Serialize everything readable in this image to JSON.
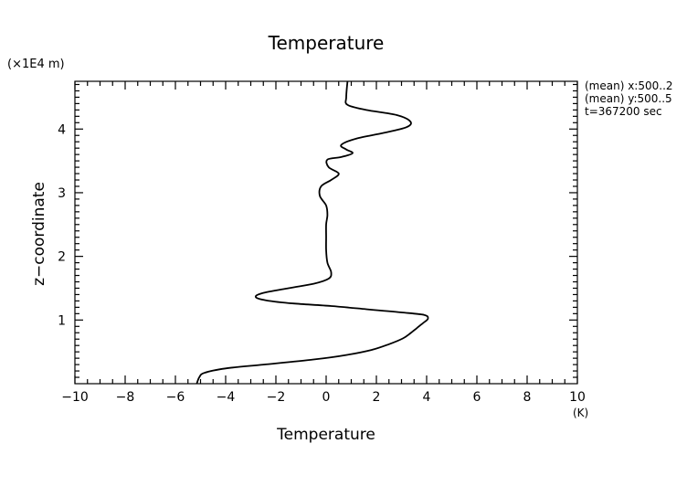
{
  "chart_data": {
    "type": "line",
    "title": "Temperature",
    "xlabel": "Temperature",
    "ylabel": "z−coordinate",
    "x_unit": "(K)",
    "y_unit": "(×1E4 m)",
    "xlim": [
      -10,
      10
    ],
    "ylim": [
      0,
      4.75
    ],
    "x_ticks": [
      -10,
      -8,
      -6,
      -4,
      -2,
      0,
      2,
      4,
      6,
      8,
      10
    ],
    "x_tick_labels": [
      "−10",
      "−8",
      "−6",
      "−4",
      "−2",
      "0",
      "2",
      "4",
      "6",
      "8",
      "10"
    ],
    "y_ticks": [
      1,
      2,
      3,
      4
    ],
    "y_tick_labels": [
      "1",
      "2",
      "3",
      "4"
    ],
    "grid": false,
    "info_lines": [
      "(mean) x:500..2",
      "(mean) y:500..5",
      "t=367200 sec"
    ],
    "series": [
      {
        "points": [
          [
            -5.15,
            0.0
          ],
          [
            -5.05,
            0.1
          ],
          [
            -4.85,
            0.17
          ],
          [
            -4.0,
            0.24
          ],
          [
            -2.5,
            0.3
          ],
          [
            -0.5,
            0.38
          ],
          [
            0.8,
            0.45
          ],
          [
            1.8,
            0.53
          ],
          [
            2.5,
            0.62
          ],
          [
            3.05,
            0.71
          ],
          [
            3.35,
            0.79
          ],
          [
            3.6,
            0.87
          ],
          [
            3.85,
            0.95
          ],
          [
            4.05,
            1.02
          ],
          [
            3.9,
            1.08
          ],
          [
            3.0,
            1.12
          ],
          [
            1.6,
            1.17
          ],
          [
            0.2,
            1.22
          ],
          [
            -1.3,
            1.26
          ],
          [
            -2.4,
            1.31
          ],
          [
            -2.8,
            1.36
          ],
          [
            -2.55,
            1.42
          ],
          [
            -1.5,
            1.5
          ],
          [
            -0.5,
            1.57
          ],
          [
            0.1,
            1.65
          ],
          [
            0.2,
            1.75
          ],
          [
            0.05,
            1.9
          ],
          [
            0.0,
            2.1
          ],
          [
            0.0,
            2.3
          ],
          [
            0.0,
            2.5
          ],
          [
            0.05,
            2.65
          ],
          [
            0.0,
            2.8
          ],
          [
            -0.25,
            2.95
          ],
          [
            -0.2,
            3.1
          ],
          [
            0.2,
            3.2
          ],
          [
            0.5,
            3.3
          ],
          [
            0.1,
            3.4
          ],
          [
            0.05,
            3.52
          ],
          [
            0.6,
            3.56
          ],
          [
            1.05,
            3.62
          ],
          [
            0.8,
            3.68
          ],
          [
            0.6,
            3.75
          ],
          [
            1.2,
            3.85
          ],
          [
            2.3,
            3.94
          ],
          [
            3.2,
            4.03
          ],
          [
            3.35,
            4.12
          ],
          [
            2.8,
            4.22
          ],
          [
            1.6,
            4.3
          ],
          [
            0.85,
            4.38
          ],
          [
            0.8,
            4.5
          ],
          [
            0.85,
            4.75
          ]
        ]
      }
    ]
  }
}
